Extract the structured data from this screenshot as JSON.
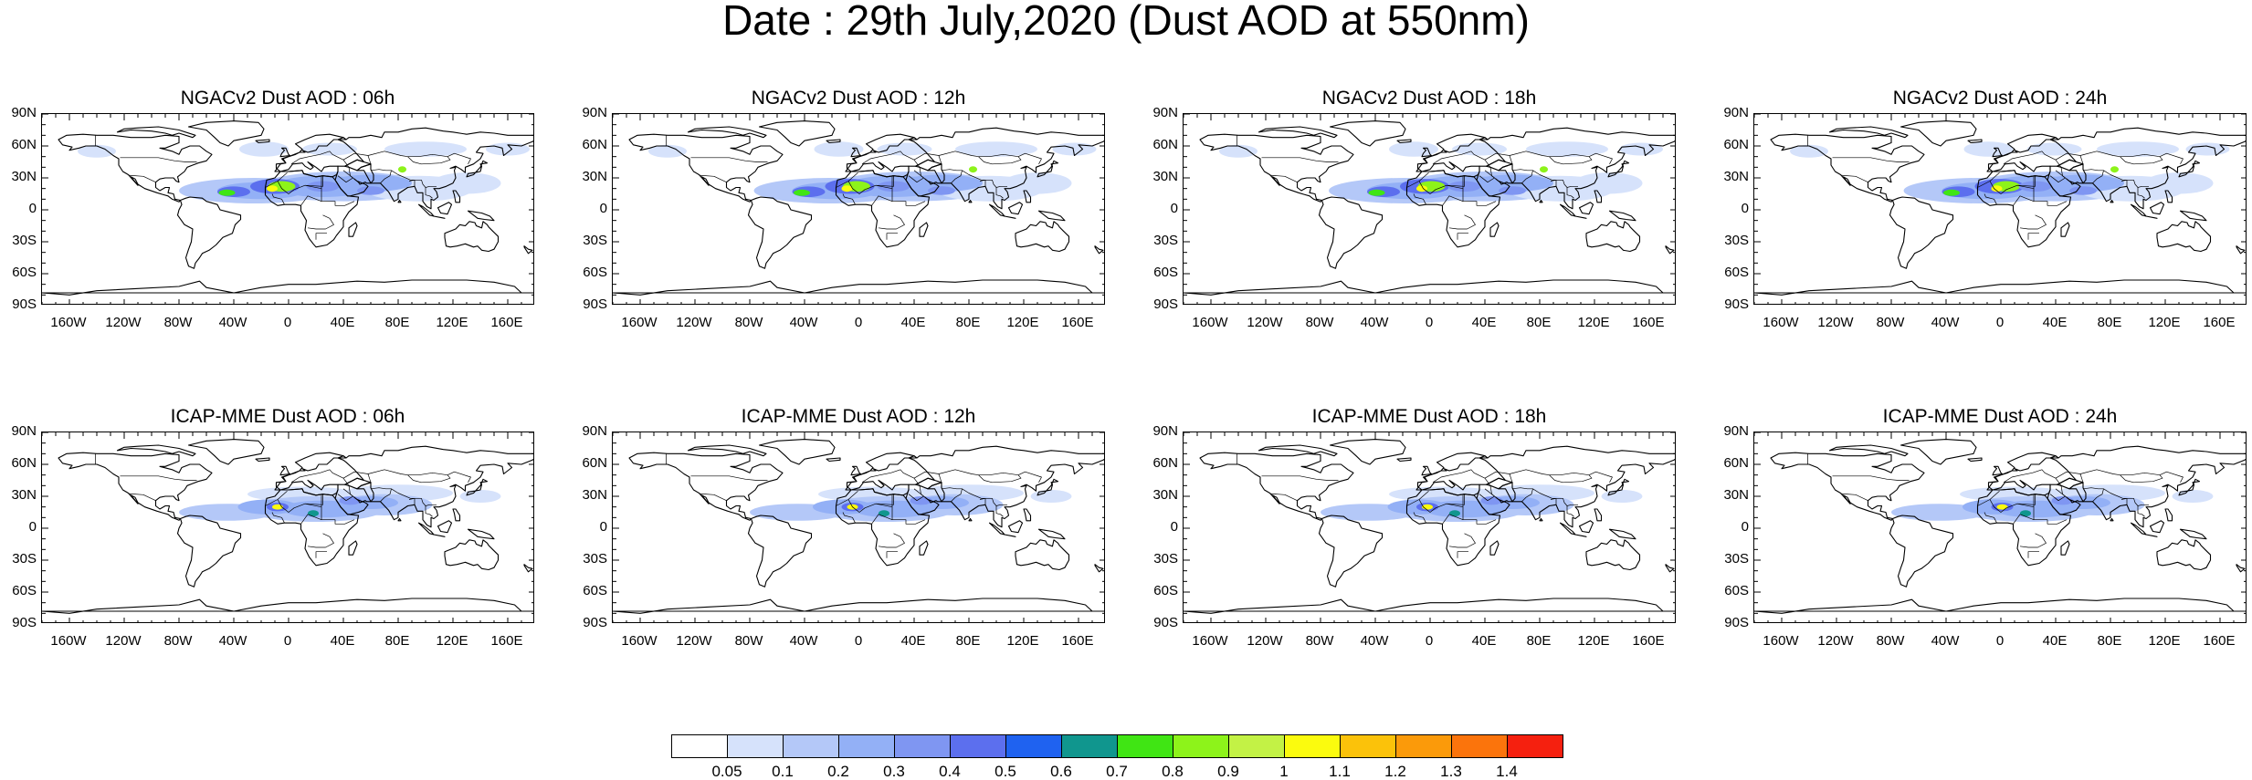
{
  "title": "Date : 29th July,2020 (Dust AOD at 550nm)",
  "lat_labels": [
    "90N",
    "60N",
    "30N",
    "0",
    "30S",
    "60S",
    "90S"
  ],
  "lon_labels": [
    "160W",
    "120W",
    "80W",
    "40W",
    "0",
    "40E",
    "80E",
    "120E",
    "160E"
  ],
  "panels": [
    {
      "title": "NGACv2 Dust AOD : 06h",
      "model": "NGACv2",
      "forecast_hour": "06h"
    },
    {
      "title": "NGACv2 Dust AOD : 12h",
      "model": "NGACv2",
      "forecast_hour": "12h"
    },
    {
      "title": "NGACv2 Dust AOD : 18h",
      "model": "NGACv2",
      "forecast_hour": "18h"
    },
    {
      "title": "NGACv2 Dust AOD : 24h",
      "model": "NGACv2",
      "forecast_hour": "24h"
    },
    {
      "title": "ICAP-MME Dust AOD : 06h",
      "model": "ICAP-MME",
      "forecast_hour": "06h"
    },
    {
      "title": "ICAP-MME Dust AOD : 12h",
      "model": "ICAP-MME",
      "forecast_hour": "12h"
    },
    {
      "title": "ICAP-MME Dust AOD : 18h",
      "model": "ICAP-MME",
      "forecast_hour": "18h"
    },
    {
      "title": "ICAP-MME Dust AOD : 24h",
      "model": "ICAP-MME",
      "forecast_hour": "24h"
    }
  ],
  "colorbar": {
    "labels": [
      "0.05",
      "0.1",
      "0.2",
      "0.3",
      "0.4",
      "0.5",
      "0.6",
      "0.7",
      "0.8",
      "0.9",
      "1",
      "1.1",
      "1.2",
      "1.3",
      "1.4"
    ],
    "colors": [
      "#ffffff",
      "#d6e2fb",
      "#b4c8f8",
      "#93b0f6",
      "#7f96f2",
      "#5c6fee",
      "#1f62f0",
      "#10968e",
      "#40e514",
      "#8df31a",
      "#c3f245",
      "#fbfb0e",
      "#fbc20a",
      "#fb9a0a",
      "#fb740c",
      "#f5200f"
    ]
  }
}
